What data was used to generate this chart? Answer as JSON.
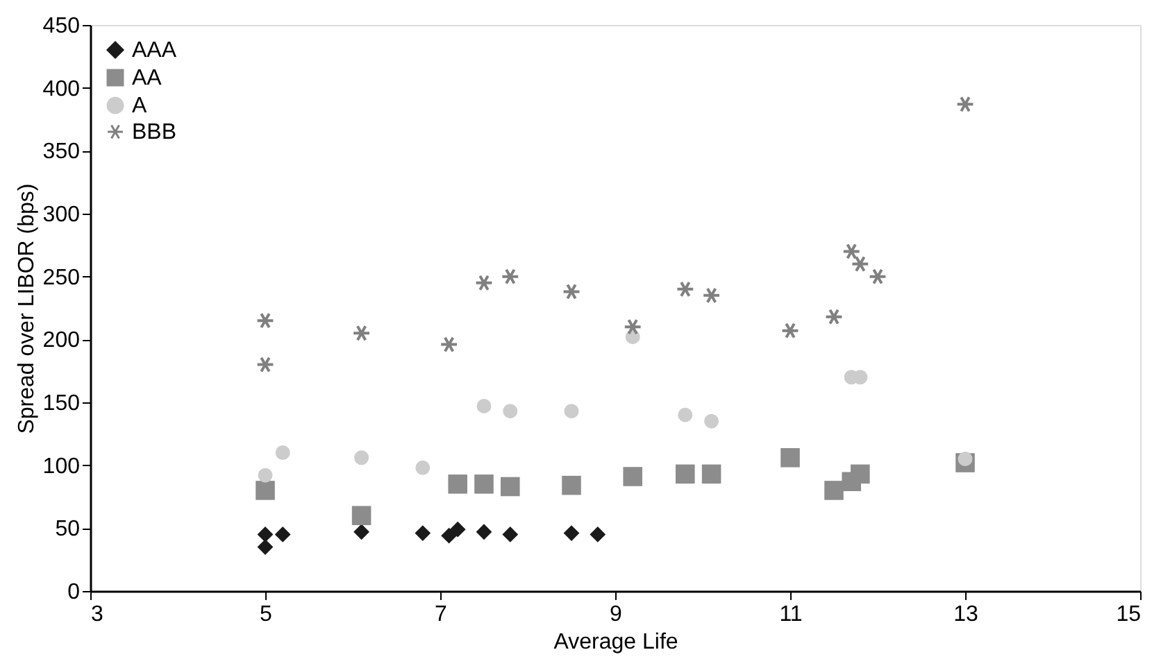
{
  "chart_data": {
    "type": "scatter",
    "xlabel": "Average Life",
    "ylabel": "Spread over LIBOR (bps)",
    "xlim": [
      3,
      15
    ],
    "xticks": [
      3,
      5,
      7,
      9,
      11,
      13,
      15
    ],
    "ylim": [
      0,
      450
    ],
    "yticks": [
      0,
      50,
      100,
      150,
      200,
      250,
      300,
      350,
      400,
      450
    ],
    "grid": false,
    "legend": "top left",
    "series": [
      {
        "name": "AAA",
        "color": "#1a1a1a",
        "marker": "diamond",
        "x": [
          5,
          5,
          5.2,
          6.1,
          6.8,
          7.1,
          7.2,
          7.5,
          7.8,
          8.5,
          8.8
        ],
        "values": [
          45,
          35,
          45,
          47,
          46,
          44,
          49,
          47,
          45,
          46,
          45
        ]
      },
      {
        "name": "AA",
        "color": "#8c8c8c",
        "marker": "square",
        "x": [
          5,
          6.1,
          7.2,
          7.5,
          7.8,
          8.5,
          9.2,
          9.8,
          10.1,
          11,
          11.5,
          11.7,
          11.8,
          13
        ],
        "values": [
          80,
          60,
          85,
          85,
          83,
          84,
          91,
          93,
          93,
          106,
          80,
          87,
          93,
          102
        ]
      },
      {
        "name": "A",
        "color": "#cccccc",
        "marker": "circle",
        "x": [
          5,
          5.2,
          6.1,
          6.8,
          7.5,
          7.8,
          8.5,
          9.2,
          9.8,
          10.1,
          11.7,
          11.8,
          13
        ],
        "values": [
          92,
          110,
          106,
          98,
          147,
          143,
          143,
          202,
          140,
          135,
          170,
          170,
          105
        ]
      },
      {
        "name": "BBB",
        "color": "#808080",
        "marker": "cross",
        "x": [
          5,
          5,
          6.1,
          7.1,
          7.5,
          7.8,
          8.5,
          9.2,
          9.8,
          10.1,
          11,
          11.5,
          11.7,
          11.8,
          12,
          13
        ],
        "values": [
          215,
          180,
          205,
          196,
          245,
          250,
          238,
          210,
          240,
          235,
          207,
          218,
          270,
          260,
          250,
          387
        ]
      }
    ]
  }
}
